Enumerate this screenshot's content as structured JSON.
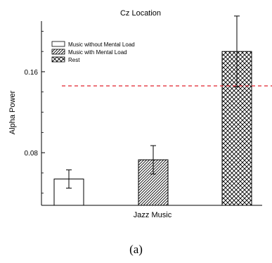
{
  "chart_data": {
    "type": "bar",
    "title": "Cz Location",
    "xlabel": "Jazz Music",
    "ylabel": "Alpha Power",
    "ylim": [
      0.028,
      0.21
    ],
    "yticks": [
      0.08,
      0.16
    ],
    "ytick_labels": [
      "0.08",
      "0.16"
    ],
    "categories": [
      "Music without Mental Load",
      "Music with Mental Load",
      "Rest"
    ],
    "series": [
      {
        "name": "Music without Mental Load",
        "value": 0.054,
        "error": 0.009,
        "pattern": "none"
      },
      {
        "name": "Music with Mental Load",
        "value": 0.073,
        "error": 0.014,
        "pattern": "diagonal"
      },
      {
        "name": "Rest",
        "value": 0.18,
        "error": 0.035,
        "pattern": "crosshatch"
      }
    ],
    "reference_line": {
      "value": 0.146,
      "color": "#e0202c",
      "style": "dashed"
    },
    "legend_position": "top-left",
    "grid": false
  },
  "caption": "(a)"
}
